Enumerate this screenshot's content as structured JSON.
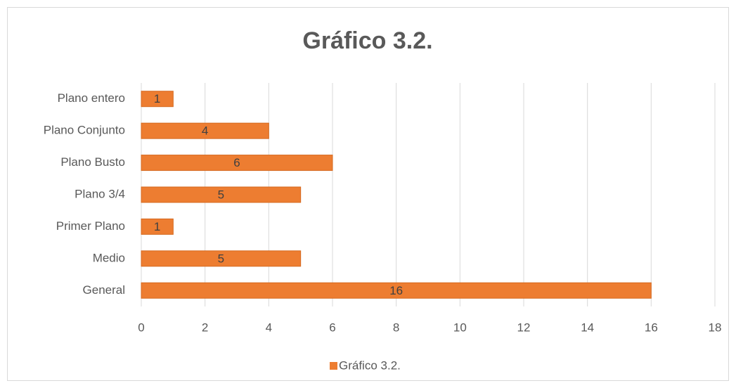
{
  "chart_data": {
    "type": "bar",
    "orientation": "horizontal",
    "title": "Gráfico 3.2.",
    "categories": [
      "Plano entero",
      "Plano Conjunto",
      "Plano Busto",
      "Plano 3/4",
      "Primer Plano",
      "Medio",
      "General"
    ],
    "series": [
      {
        "name": "Gráfico 3.2.",
        "color": "#ed7d31",
        "values": [
          1,
          4,
          6,
          5,
          1,
          5,
          16
        ]
      }
    ],
    "xlim": [
      0,
      18
    ],
    "xticks": [
      0,
      2,
      4,
      6,
      8,
      10,
      12,
      14,
      16,
      18
    ],
    "grid": true,
    "legend": "bottom"
  }
}
